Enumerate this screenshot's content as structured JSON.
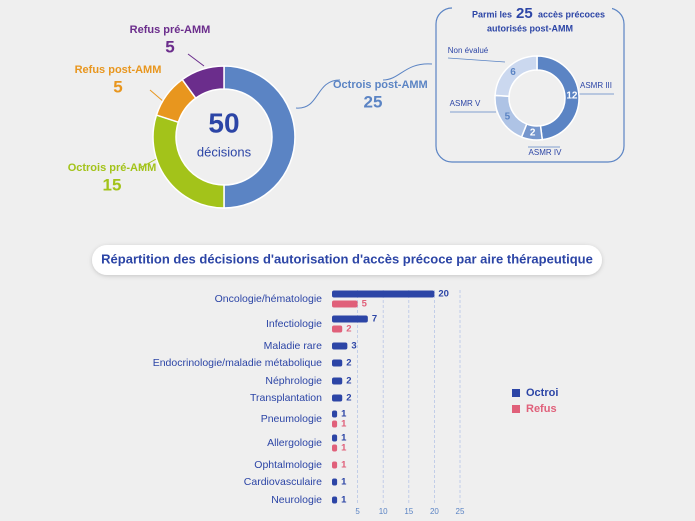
{
  "chart_data": [
    {
      "type": "donut",
      "center_value": 50,
      "center_label": "décisions",
      "categories": [
        "Octrois post-AMM",
        "Octrois pré-AMM",
        "Refus post-AMM",
        "Refus pré-AMM"
      ],
      "values": [
        25,
        15,
        5,
        5
      ],
      "colors": [
        "#5b84c4",
        "#a3c31a",
        "#e8961e",
        "#6b2d8c"
      ]
    },
    {
      "type": "donut",
      "title_before": "Parmi les",
      "title_value": 25,
      "title_after": [
        "accès précoces",
        "autorisés post-AMM"
      ],
      "categories": [
        "ASMR III",
        "ASMR IV",
        "ASMR V",
        "Non évalué"
      ],
      "values": [
        12,
        2,
        5,
        6
      ],
      "colors": [
        "#5b84c4",
        "#7596cd",
        "#aec3e5",
        "#cbd8ef"
      ]
    },
    {
      "type": "bar",
      "orientation": "horizontal",
      "title": "Répartition des décisions d'autorisation d'accès précoce par aire thérapeutique",
      "categories": [
        "Oncologie/hématologie",
        "Infectiologie",
        "Maladie rare",
        "Endocrinologie/maladie métabolique",
        "Néphrologie",
        "Transplantation",
        "Pneumologie",
        "Allergologie",
        "Ophtalmologie",
        "Cardiovasculaire",
        "Neurologie"
      ],
      "series": [
        {
          "name": "Octroi",
          "color": "#2c45a6",
          "values": [
            20,
            7,
            3,
            2,
            2,
            2,
            1,
            1,
            null,
            1,
            1
          ]
        },
        {
          "name": "Refus",
          "color": "#e0607a",
          "values": [
            5,
            2,
            null,
            null,
            null,
            null,
            1,
            1,
            1,
            null,
            null
          ]
        }
      ],
      "xlim": [
        0,
        25
      ],
      "xticks": [
        5,
        10,
        15,
        20,
        25
      ],
      "grid": true
    }
  ]
}
